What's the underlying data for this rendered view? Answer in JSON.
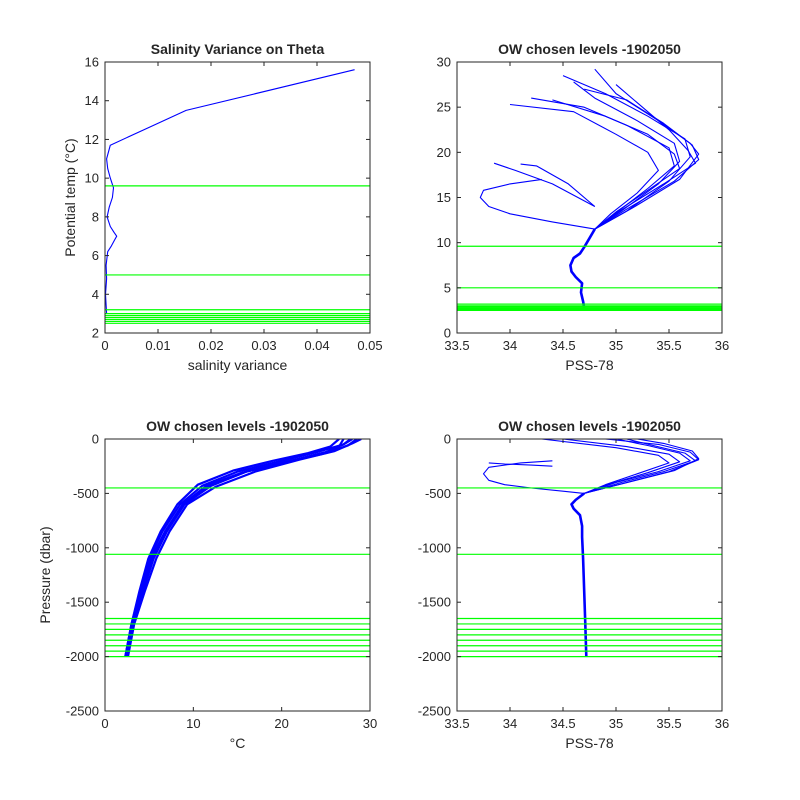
{
  "colors": {
    "data": "#0000ff",
    "levels": "#00ff00",
    "axes": "#262626"
  },
  "chart_data": [
    {
      "type": "line",
      "title": "Salinity Variance on Theta",
      "xlabel": "salinity variance",
      "ylabel": "Potential temp (°C)",
      "xlim": [
        0,
        0.05
      ],
      "ylim": [
        2,
        16
      ],
      "xticks": [
        0,
        0.01,
        0.02,
        0.03,
        0.04,
        0.05
      ],
      "xticklabels": [
        "0",
        "0.01",
        "0.02",
        "0.03",
        "0.04",
        "0.05"
      ],
      "yticks": [
        2,
        4,
        6,
        8,
        10,
        12,
        14,
        16
      ],
      "yticklabels": [
        "2",
        "4",
        "6",
        "8",
        "10",
        "12",
        "14",
        "16"
      ],
      "y_reversed": false,
      "series": [
        {
          "role": "variance-profile",
          "x": [
            0.0003,
            0.0001,
            0.0003,
            0.0002,
            0.0005,
            0.0012,
            0.0018,
            0.0022,
            0.0017,
            0.001,
            0.0004,
            0.0008,
            0.0014,
            0.0016,
            0.001,
            0.0005,
            0.0003,
            0.001,
            0.0153,
            0.0471
          ],
          "y": [
            3.0,
            4.0,
            4.8,
            5.5,
            6.2,
            6.5,
            6.8,
            7.0,
            7.2,
            7.5,
            8.0,
            8.5,
            9.0,
            9.5,
            10.0,
            10.5,
            11.0,
            11.7,
            13.5,
            15.6
          ]
        }
      ],
      "hlines": [
        9.6,
        5.0,
        3.2,
        3.0,
        2.9,
        2.8,
        2.7,
        2.6,
        2.5
      ]
    },
    {
      "type": "line",
      "title": "OW chosen levels -1902050",
      "xlabel": "PSS-78",
      "ylabel": "",
      "xlim": [
        33.5,
        36
      ],
      "ylim": [
        0,
        30
      ],
      "xticks": [
        33.5,
        34,
        34.5,
        35,
        35.5,
        36
      ],
      "xticklabels": [
        "33.5",
        "34",
        "34.5",
        "35",
        "35.5",
        "36"
      ],
      "yticks": [
        0,
        5,
        10,
        15,
        20,
        25,
        30
      ],
      "yticklabels": [
        "0",
        "5",
        "10",
        "15",
        "20",
        "25",
        "30"
      ],
      "y_reversed": false,
      "series": [
        {
          "role": "deep-branch",
          "x": [
            34.7,
            34.69,
            34.67,
            34.68,
            34.62,
            34.58,
            34.57,
            34.6,
            34.66,
            34.7,
            34.75,
            34.8
          ],
          "y": [
            2.8,
            3.5,
            4.5,
            5.5,
            6.2,
            6.8,
            7.5,
            8.3,
            8.8,
            9.5,
            10.5,
            11.5
          ]
        },
        {
          "role": "intrusion",
          "x": [
            34.8,
            34.4,
            34.0,
            33.8,
            33.72,
            33.75,
            34.0,
            34.3
          ],
          "y": [
            11.5,
            12.3,
            13.2,
            14.0,
            15.0,
            15.8,
            16.5,
            17.0
          ]
        },
        {
          "role": "profile",
          "x": [
            34.8,
            35.05,
            35.4,
            35.6,
            35.55,
            35.2,
            34.8,
            34.6
          ],
          "y": [
            11.5,
            13.5,
            16.5,
            19.0,
            21.0,
            23.5,
            26.0,
            27.8
          ]
        },
        {
          "role": "profile",
          "x": [
            34.8,
            35.1,
            35.5,
            35.7,
            35.65,
            35.3,
            34.9,
            34.5
          ],
          "y": [
            11.5,
            13.5,
            16.8,
            19.5,
            21.5,
            24.0,
            26.5,
            28.5
          ]
        },
        {
          "role": "profile",
          "x": [
            34.8,
            35.0,
            35.3,
            35.55,
            35.5,
            35.1,
            34.7,
            34.2
          ],
          "y": [
            11.5,
            13.3,
            16.0,
            18.5,
            20.5,
            23.0,
            25.0,
            26.0
          ]
        },
        {
          "role": "profile",
          "x": [
            34.8,
            35.15,
            35.6,
            35.78,
            35.7,
            35.4,
            35.0,
            34.8
          ],
          "y": [
            11.5,
            13.8,
            17.0,
            19.8,
            21.0,
            23.5,
            26.5,
            29.2
          ]
        },
        {
          "role": "profile",
          "x": [
            34.8,
            34.95,
            35.2,
            35.4,
            35.3,
            35.0,
            34.6,
            34.0
          ],
          "y": [
            11.5,
            13.2,
            15.5,
            18.0,
            20.0,
            22.0,
            24.5,
            25.3
          ]
        },
        {
          "role": "profile",
          "x": [
            34.8,
            35.05,
            35.45,
            35.75,
            35.68,
            35.5,
            35.2,
            35.0
          ],
          "y": [
            11.5,
            13.6,
            16.5,
            18.8,
            20.2,
            22.5,
            25.5,
            27.5
          ]
        },
        {
          "role": "profile",
          "x": [
            34.8,
            35.0,
            35.35,
            35.6,
            35.55,
            35.3,
            34.9,
            34.4
          ],
          "y": [
            11.5,
            13.4,
            16.2,
            18.2,
            19.8,
            22.0,
            24.0,
            25.8
          ]
        },
        {
          "role": "profile",
          "x": [
            34.8,
            35.1,
            35.55,
            35.78,
            35.72,
            35.45,
            35.1,
            34.7
          ],
          "y": [
            11.5,
            13.7,
            16.8,
            19.2,
            20.8,
            23.2,
            25.8,
            27.0
          ]
        },
        {
          "role": "outlier",
          "x": [
            34.8,
            34.55,
            34.25,
            34.1
          ],
          "y": [
            14.0,
            16.5,
            18.5,
            18.7
          ]
        },
        {
          "role": "outlier",
          "x": [
            34.8,
            34.4,
            34.05,
            33.85
          ],
          "y": [
            14.0,
            16.5,
            18.0,
            18.8
          ]
        }
      ],
      "hlines": [
        9.6,
        5.0,
        3.2,
        3.0,
        2.9,
        2.8,
        2.7,
        2.6,
        2.5
      ]
    },
    {
      "type": "line",
      "title": "OW chosen levels -1902050",
      "xlabel": "°C",
      "ylabel": "Pressure (dbar)",
      "xlim": [
        0,
        30
      ],
      "ylim": [
        -2500,
        0
      ],
      "xticks": [
        0,
        10,
        20,
        30
      ],
      "xticklabels": [
        "0",
        "10",
        "20",
        "30"
      ],
      "yticks": [
        -2500,
        -2000,
        -1500,
        -1000,
        -500,
        0
      ],
      "yticklabels": [
        "-2500",
        "-2000",
        "-1500",
        "-1000",
        "-500",
        "0"
      ],
      "y_reversed": false,
      "series": [
        {
          "role": "profile",
          "x": [
            2.3,
            3.0,
            4.0,
            5.0,
            6.5,
            8.5,
            11.0,
            15.0,
            20.0,
            24.0,
            27.0,
            28.0
          ],
          "y": [
            -2000,
            -1700,
            -1400,
            -1100,
            -850,
            -600,
            -430,
            -300,
            -200,
            -120,
            -50,
            0
          ]
        },
        {
          "role": "profile",
          "x": [
            2.5,
            3.2,
            4.3,
            5.5,
            7.0,
            9.0,
            12.0,
            16.0,
            21.0,
            25.0,
            27.5,
            28.5
          ],
          "y": [
            -2000,
            -1700,
            -1400,
            -1100,
            -850,
            -600,
            -430,
            -300,
            -200,
            -130,
            -60,
            0
          ]
        },
        {
          "role": "profile",
          "x": [
            2.4,
            3.1,
            4.1,
            5.2,
            6.8,
            8.8,
            11.5,
            15.5,
            20.5,
            24.5,
            26.5,
            27.0
          ],
          "y": [
            -2000,
            -1700,
            -1400,
            -1100,
            -850,
            -600,
            -430,
            -310,
            -210,
            -140,
            -70,
            0
          ]
        },
        {
          "role": "profile",
          "x": [
            2.6,
            3.3,
            4.5,
            5.8,
            7.3,
            9.3,
            12.5,
            17.0,
            22.0,
            26.0,
            28.0,
            29.0
          ],
          "y": [
            -2000,
            -1700,
            -1400,
            -1100,
            -850,
            -600,
            -440,
            -300,
            -190,
            -110,
            -40,
            0
          ]
        },
        {
          "role": "profile",
          "x": [
            2.3,
            3.0,
            3.9,
            4.9,
            6.3,
            8.2,
            10.5,
            14.5,
            19.0,
            23.0,
            25.5,
            26.5
          ],
          "y": [
            -2000,
            -1700,
            -1400,
            -1100,
            -850,
            -600,
            -420,
            -290,
            -200,
            -130,
            -70,
            0
          ]
        },
        {
          "role": "profile",
          "x": [
            2.5,
            3.2,
            4.2,
            5.4,
            6.9,
            8.9,
            11.8,
            16.0,
            21.0,
            25.0,
            27.0,
            27.8
          ],
          "y": [
            -2000,
            -1700,
            -1400,
            -1100,
            -850,
            -600,
            -430,
            -300,
            -200,
            -120,
            -50,
            0
          ]
        }
      ],
      "hlines": [
        -450,
        -1060,
        -1650,
        -1700,
        -1750,
        -1800,
        -1850,
        -1900,
        -1950,
        -2000
      ]
    },
    {
      "type": "line",
      "title": "OW chosen levels -1902050",
      "xlabel": "PSS-78",
      "ylabel": "",
      "xlim": [
        33.5,
        36
      ],
      "ylim": [
        -2500,
        0
      ],
      "xticks": [
        33.5,
        34,
        34.5,
        35,
        35.5,
        36
      ],
      "xticklabels": [
        "33.5",
        "34",
        "34.5",
        "35",
        "35.5",
        "36"
      ],
      "yticks": [
        -2500,
        -2000,
        -1500,
        -1000,
        -500,
        0
      ],
      "yticklabels": [
        "-2500",
        "-2000",
        "-1500",
        "-1000",
        "-500",
        "0"
      ],
      "y_reversed": false,
      "series": [
        {
          "role": "deep-branch",
          "x": [
            34.72,
            34.71,
            34.7,
            34.69,
            34.68,
            34.68,
            34.66,
            34.6,
            34.58,
            34.62,
            34.7
          ],
          "y": [
            -2000,
            -1700,
            -1400,
            -1100,
            -900,
            -800,
            -700,
            -640,
            -600,
            -560,
            -500
          ]
        },
        {
          "role": "intrusion",
          "x": [
            34.7,
            34.5,
            34.2,
            33.95,
            33.8,
            33.75,
            33.8,
            34.1,
            34.4
          ],
          "y": [
            -500,
            -480,
            -450,
            -420,
            -380,
            -320,
            -260,
            -220,
            -200
          ]
        },
        {
          "role": "profile",
          "x": [
            34.7,
            35.0,
            35.4,
            35.7,
            35.6,
            35.3,
            35.0
          ],
          "y": [
            -500,
            -400,
            -300,
            -200,
            -130,
            -60,
            0
          ]
        },
        {
          "role": "profile",
          "x": [
            34.7,
            35.1,
            35.5,
            35.78,
            35.7,
            35.4,
            34.9
          ],
          "y": [
            -500,
            -400,
            -300,
            -190,
            -120,
            -50,
            0
          ]
        },
        {
          "role": "profile",
          "x": [
            34.7,
            34.95,
            35.3,
            35.6,
            35.5,
            35.1,
            34.5
          ],
          "y": [
            -500,
            -410,
            -310,
            -210,
            -140,
            -70,
            0
          ]
        },
        {
          "role": "profile",
          "x": [
            34.7,
            35.05,
            35.45,
            35.75,
            35.65,
            35.35,
            35.1
          ],
          "y": [
            -500,
            -400,
            -300,
            -200,
            -130,
            -60,
            0
          ]
        },
        {
          "role": "profile",
          "x": [
            34.7,
            34.9,
            35.2,
            35.5,
            35.4,
            35.0,
            34.3
          ],
          "y": [
            -500,
            -420,
            -320,
            -220,
            -150,
            -80,
            0
          ]
        },
        {
          "role": "profile",
          "x": [
            34.7,
            35.15,
            35.55,
            35.78,
            35.72,
            35.45,
            35.2
          ],
          "y": [
            -500,
            -390,
            -290,
            -180,
            -110,
            -40,
            0
          ]
        },
        {
          "role": "outlier",
          "x": [
            34.4,
            34.2,
            33.95,
            33.8
          ],
          "y": [
            -250,
            -240,
            -230,
            -220
          ]
        }
      ],
      "hlines": [
        -450,
        -1060,
        -1650,
        -1700,
        -1750,
        -1800,
        -1850,
        -1900,
        -1950,
        -2000
      ]
    }
  ]
}
